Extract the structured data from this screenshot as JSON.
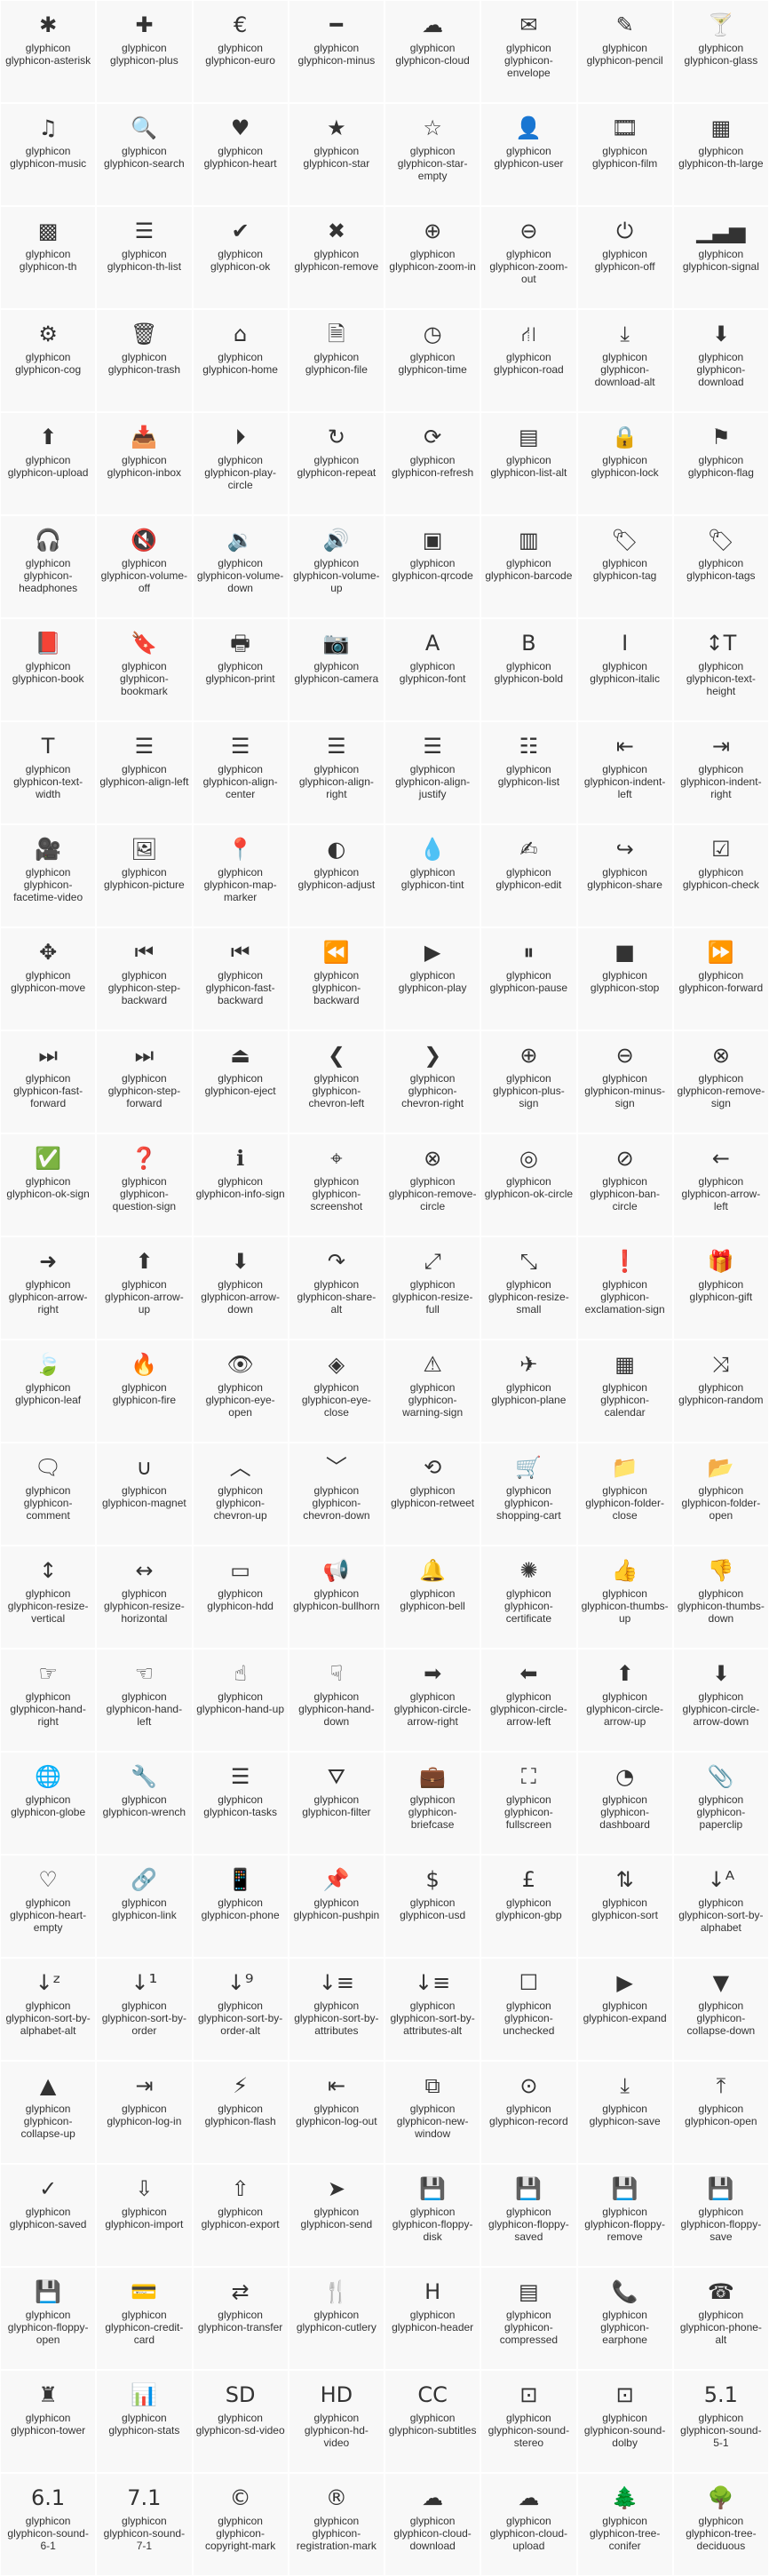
{
  "icons": [
    {
      "label": "glyphicon glyphicon-asterisk",
      "icon": "✱"
    },
    {
      "label": "glyphicon glyphicon-plus",
      "icon": "✚"
    },
    {
      "label": "glyphicon glyphicon-euro",
      "icon": "€"
    },
    {
      "label": "glyphicon glyphicon-minus",
      "icon": "━"
    },
    {
      "label": "glyphicon glyphicon-cloud",
      "icon": "☁"
    },
    {
      "label": "glyphicon glyphicon-envelope",
      "icon": "✉"
    },
    {
      "label": "glyphicon glyphicon-pencil",
      "icon": "✎"
    },
    {
      "label": "glyphicon glyphicon-glass",
      "icon": "🍸"
    },
    {
      "label": "glyphicon glyphicon-music",
      "icon": "♫"
    },
    {
      "label": "glyphicon glyphicon-search",
      "icon": "🔍"
    },
    {
      "label": "glyphicon glyphicon-heart",
      "icon": "♥"
    },
    {
      "label": "glyphicon glyphicon-star",
      "icon": "★"
    },
    {
      "label": "glyphicon glyphicon-star-empty",
      "icon": "☆"
    },
    {
      "label": "glyphicon glyphicon-user",
      "icon": "👤"
    },
    {
      "label": "glyphicon glyphicon-film",
      "icon": "🎞"
    },
    {
      "label": "glyphicon glyphicon-th-large",
      "icon": "▦"
    },
    {
      "label": "glyphicon glyphicon-th",
      "icon": "▩"
    },
    {
      "label": "glyphicon glyphicon-th-list",
      "icon": "☰"
    },
    {
      "label": "glyphicon glyphicon-ok",
      "icon": "✔"
    },
    {
      "label": "glyphicon glyphicon-remove",
      "icon": "✖"
    },
    {
      "label": "glyphicon glyphicon-zoom-in",
      "icon": "⊕"
    },
    {
      "label": "glyphicon glyphicon-zoom-out",
      "icon": "⊖"
    },
    {
      "label": "glyphicon glyphicon-off",
      "icon": "⏻"
    },
    {
      "label": "glyphicon glyphicon-signal",
      "icon": "▁▃▅"
    },
    {
      "label": "glyphicon glyphicon-cog",
      "icon": "⚙"
    },
    {
      "label": "glyphicon glyphicon-trash",
      "icon": "🗑"
    },
    {
      "label": "glyphicon glyphicon-home",
      "icon": "⌂"
    },
    {
      "label": "glyphicon glyphicon-file",
      "icon": "🗎"
    },
    {
      "label": "glyphicon glyphicon-time",
      "icon": "◷"
    },
    {
      "label": "glyphicon glyphicon-road",
      "icon": "⛙"
    },
    {
      "label": "glyphicon glyphicon-download-alt",
      "icon": "⤓"
    },
    {
      "label": "glyphicon glyphicon-download",
      "icon": "⬇"
    },
    {
      "label": "glyphicon glyphicon-upload",
      "icon": "⬆"
    },
    {
      "label": "glyphicon glyphicon-inbox",
      "icon": "📥"
    },
    {
      "label": "glyphicon glyphicon-play-circle",
      "icon": "⏵"
    },
    {
      "label": "glyphicon glyphicon-repeat",
      "icon": "↻"
    },
    {
      "label": "glyphicon glyphicon-refresh",
      "icon": "⟳"
    },
    {
      "label": "glyphicon glyphicon-list-alt",
      "icon": "▤"
    },
    {
      "label": "glyphicon glyphicon-lock",
      "icon": "🔒"
    },
    {
      "label": "glyphicon glyphicon-flag",
      "icon": "⚑"
    },
    {
      "label": "glyphicon glyphicon-headphones",
      "icon": "🎧"
    },
    {
      "label": "glyphicon glyphicon-volume-off",
      "icon": "🔇"
    },
    {
      "label": "glyphicon glyphicon-volume-down",
      "icon": "🔉"
    },
    {
      "label": "glyphicon glyphicon-volume-up",
      "icon": "🔊"
    },
    {
      "label": "glyphicon glyphicon-qrcode",
      "icon": "▣"
    },
    {
      "label": "glyphicon glyphicon-barcode",
      "icon": "▥"
    },
    {
      "label": "glyphicon glyphicon-tag",
      "icon": "🏷"
    },
    {
      "label": "glyphicon glyphicon-tags",
      "icon": "🏷"
    },
    {
      "label": "glyphicon glyphicon-book",
      "icon": "📕"
    },
    {
      "label": "glyphicon glyphicon-bookmark",
      "icon": "🔖"
    },
    {
      "label": "glyphicon glyphicon-print",
      "icon": "🖶"
    },
    {
      "label": "glyphicon glyphicon-camera",
      "icon": "📷"
    },
    {
      "label": "glyphicon glyphicon-font",
      "icon": "A"
    },
    {
      "label": "glyphicon glyphicon-bold",
      "icon": "B"
    },
    {
      "label": "glyphicon glyphicon-italic",
      "icon": "I"
    },
    {
      "label": "glyphicon glyphicon-text-height",
      "icon": "↕T"
    },
    {
      "label": "glyphicon glyphicon-text-width",
      "icon": "T"
    },
    {
      "label": "glyphicon glyphicon-align-left",
      "icon": "☰"
    },
    {
      "label": "glyphicon glyphicon-align-center",
      "icon": "☰"
    },
    {
      "label": "glyphicon glyphicon-align-right",
      "icon": "☰"
    },
    {
      "label": "glyphicon glyphicon-align-justify",
      "icon": "☰"
    },
    {
      "label": "glyphicon glyphicon-list",
      "icon": "☷"
    },
    {
      "label": "glyphicon glyphicon-indent-left",
      "icon": "⇤"
    },
    {
      "label": "glyphicon glyphicon-indent-right",
      "icon": "⇥"
    },
    {
      "label": "glyphicon glyphicon-facetime-video",
      "icon": "🎥"
    },
    {
      "label": "glyphicon glyphicon-picture",
      "icon": "🖼"
    },
    {
      "label": "glyphicon glyphicon-map-marker",
      "icon": "📍"
    },
    {
      "label": "glyphicon glyphicon-adjust",
      "icon": "◐"
    },
    {
      "label": "glyphicon glyphicon-tint",
      "icon": "💧"
    },
    {
      "label": "glyphicon glyphicon-edit",
      "icon": "✍"
    },
    {
      "label": "glyphicon glyphicon-share",
      "icon": "↪"
    },
    {
      "label": "glyphicon glyphicon-check",
      "icon": "☑"
    },
    {
      "label": "glyphicon glyphicon-move",
      "icon": "✥"
    },
    {
      "label": "glyphicon glyphicon-step-backward",
      "icon": "⏮"
    },
    {
      "label": "glyphicon glyphicon-fast-backward",
      "icon": "⏮"
    },
    {
      "label": "glyphicon glyphicon-backward",
      "icon": "⏪"
    },
    {
      "label": "glyphicon glyphicon-play",
      "icon": "▶"
    },
    {
      "label": "glyphicon glyphicon-pause",
      "icon": "⏸"
    },
    {
      "label": "glyphicon glyphicon-stop",
      "icon": "■"
    },
    {
      "label": "glyphicon glyphicon-forward",
      "icon": "⏩"
    },
    {
      "label": "glyphicon glyphicon-fast-forward",
      "icon": "⏭"
    },
    {
      "label": "glyphicon glyphicon-step-forward",
      "icon": "⏭"
    },
    {
      "label": "glyphicon glyphicon-eject",
      "icon": "⏏"
    },
    {
      "label": "glyphicon glyphicon-chevron-left",
      "icon": "❮"
    },
    {
      "label": "glyphicon glyphicon-chevron-right",
      "icon": "❯"
    },
    {
      "label": "glyphicon glyphicon-plus-sign",
      "icon": "⊕"
    },
    {
      "label": "glyphicon glyphicon-minus-sign",
      "icon": "⊖"
    },
    {
      "label": "glyphicon glyphicon-remove-sign",
      "icon": "⊗"
    },
    {
      "label": "glyphicon glyphicon-ok-sign",
      "icon": "✅"
    },
    {
      "label": "glyphicon glyphicon-question-sign",
      "icon": "❓"
    },
    {
      "label": "glyphicon glyphicon-info-sign",
      "icon": "ℹ"
    },
    {
      "label": "glyphicon glyphicon-screenshot",
      "icon": "⌖"
    },
    {
      "label": "glyphicon glyphicon-remove-circle",
      "icon": "⊗"
    },
    {
      "label": "glyphicon glyphicon-ok-circle",
      "icon": "◎"
    },
    {
      "label": "glyphicon glyphicon-ban-circle",
      "icon": "⊘"
    },
    {
      "label": "glyphicon glyphicon-arrow-left",
      "icon": "←"
    },
    {
      "label": "glyphicon glyphicon-arrow-right",
      "icon": "➜"
    },
    {
      "label": "glyphicon glyphicon-arrow-up",
      "icon": "⬆"
    },
    {
      "label": "glyphicon glyphicon-arrow-down",
      "icon": "⬇"
    },
    {
      "label": "glyphicon glyphicon-share-alt",
      "icon": "↷"
    },
    {
      "label": "glyphicon glyphicon-resize-full",
      "icon": "⤢"
    },
    {
      "label": "glyphicon glyphicon-resize-small",
      "icon": "⤡"
    },
    {
      "label": "glyphicon glyphicon-exclamation-sign",
      "icon": "❗"
    },
    {
      "label": "glyphicon glyphicon-gift",
      "icon": "🎁"
    },
    {
      "label": "glyphicon glyphicon-leaf",
      "icon": "🍃"
    },
    {
      "label": "glyphicon glyphicon-fire",
      "icon": "🔥"
    },
    {
      "label": "glyphicon glyphicon-eye-open",
      "icon": "👁"
    },
    {
      "label": "glyphicon glyphicon-eye-close",
      "icon": "◈"
    },
    {
      "label": "glyphicon glyphicon-warning-sign",
      "icon": "⚠"
    },
    {
      "label": "glyphicon glyphicon-plane",
      "icon": "✈"
    },
    {
      "label": "glyphicon glyphicon-calendar",
      "icon": "▦"
    },
    {
      "label": "glyphicon glyphicon-random",
      "icon": "⤨"
    },
    {
      "label": "glyphicon glyphicon-comment",
      "icon": "🗨"
    },
    {
      "label": "glyphicon glyphicon-magnet",
      "icon": "∪"
    },
    {
      "label": "glyphicon glyphicon-chevron-up",
      "icon": "︿"
    },
    {
      "label": "glyphicon glyphicon-chevron-down",
      "icon": "﹀"
    },
    {
      "label": "glyphicon glyphicon-retweet",
      "icon": "⟲"
    },
    {
      "label": "glyphicon glyphicon-shopping-cart",
      "icon": "🛒"
    },
    {
      "label": "glyphicon glyphicon-folder-close",
      "icon": "📁"
    },
    {
      "label": "glyphicon glyphicon-folder-open",
      "icon": "📂"
    },
    {
      "label": "glyphicon glyphicon-resize-vertical",
      "icon": "↕"
    },
    {
      "label": "glyphicon glyphicon-resize-horizontal",
      "icon": "↔"
    },
    {
      "label": "glyphicon glyphicon-hdd",
      "icon": "▭"
    },
    {
      "label": "glyphicon glyphicon-bullhorn",
      "icon": "📢"
    },
    {
      "label": "glyphicon glyphicon-bell",
      "icon": "🔔"
    },
    {
      "label": "glyphicon glyphicon-certificate",
      "icon": "✺"
    },
    {
      "label": "glyphicon glyphicon-thumbs-up",
      "icon": "👍"
    },
    {
      "label": "glyphicon glyphicon-thumbs-down",
      "icon": "👎"
    },
    {
      "label": "glyphicon glyphicon-hand-right",
      "icon": "☞"
    },
    {
      "label": "glyphicon glyphicon-hand-left",
      "icon": "☜"
    },
    {
      "label": "glyphicon glyphicon-hand-up",
      "icon": "☝"
    },
    {
      "label": "glyphicon glyphicon-hand-down",
      "icon": "☟"
    },
    {
      "label": "glyphicon glyphicon-circle-arrow-right",
      "icon": "➡"
    },
    {
      "label": "glyphicon glyphicon-circle-arrow-left",
      "icon": "⬅"
    },
    {
      "label": "glyphicon glyphicon-circle-arrow-up",
      "icon": "⬆"
    },
    {
      "label": "glyphicon glyphicon-circle-arrow-down",
      "icon": "⬇"
    },
    {
      "label": "glyphicon glyphicon-globe",
      "icon": "🌐"
    },
    {
      "label": "glyphicon glyphicon-wrench",
      "icon": "🔧"
    },
    {
      "label": "glyphicon glyphicon-tasks",
      "icon": "☰"
    },
    {
      "label": "glyphicon glyphicon-filter",
      "icon": "⛛"
    },
    {
      "label": "glyphicon glyphicon-briefcase",
      "icon": "💼"
    },
    {
      "label": "glyphicon glyphicon-fullscreen",
      "icon": "⛶"
    },
    {
      "label": "glyphicon glyphicon-dashboard",
      "icon": "◔"
    },
    {
      "label": "glyphicon glyphicon-paperclip",
      "icon": "📎"
    },
    {
      "label": "glyphicon glyphicon-heart-empty",
      "icon": "♡"
    },
    {
      "label": "glyphicon glyphicon-link",
      "icon": "🔗"
    },
    {
      "label": "glyphicon glyphicon-phone",
      "icon": "📱"
    },
    {
      "label": "glyphicon glyphicon-pushpin",
      "icon": "📌"
    },
    {
      "label": "glyphicon glyphicon-usd",
      "icon": "$"
    },
    {
      "label": "glyphicon glyphicon-gbp",
      "icon": "£"
    },
    {
      "label": "glyphicon glyphicon-sort",
      "icon": "⇅"
    },
    {
      "label": "glyphicon glyphicon-sort-by-alphabet",
      "icon": "↓ᴬ"
    },
    {
      "label": "glyphicon glyphicon-sort-by-alphabet-alt",
      "icon": "↓ᶻ"
    },
    {
      "label": "glyphicon glyphicon-sort-by-order",
      "icon": "↓¹"
    },
    {
      "label": "glyphicon glyphicon-sort-by-order-alt",
      "icon": "↓⁹"
    },
    {
      "label": "glyphicon glyphicon-sort-by-attributes",
      "icon": "↓≡"
    },
    {
      "label": "glyphicon glyphicon-sort-by-attributes-alt",
      "icon": "↓≡"
    },
    {
      "label": "glyphicon glyphicon-unchecked",
      "icon": "☐"
    },
    {
      "label": "glyphicon glyphicon-expand",
      "icon": "▶"
    },
    {
      "label": "glyphicon glyphicon-collapse-down",
      "icon": "▼"
    },
    {
      "label": "glyphicon glyphicon-collapse-up",
      "icon": "▲"
    },
    {
      "label": "glyphicon glyphicon-log-in",
      "icon": "⇥"
    },
    {
      "label": "glyphicon glyphicon-flash",
      "icon": "⚡"
    },
    {
      "label": "glyphicon glyphicon-log-out",
      "icon": "⇤"
    },
    {
      "label": "glyphicon glyphicon-new-window",
      "icon": "⧉"
    },
    {
      "label": "glyphicon glyphicon-record",
      "icon": "⊙"
    },
    {
      "label": "glyphicon glyphicon-save",
      "icon": "⤓"
    },
    {
      "label": "glyphicon glyphicon-open",
      "icon": "⤒"
    },
    {
      "label": "glyphicon glyphicon-saved",
      "icon": "✓"
    },
    {
      "label": "glyphicon glyphicon-import",
      "icon": "⇩"
    },
    {
      "label": "glyphicon glyphicon-export",
      "icon": "⇧"
    },
    {
      "label": "glyphicon glyphicon-send",
      "icon": "➤"
    },
    {
      "label": "glyphicon glyphicon-floppy-disk",
      "icon": "💾"
    },
    {
      "label": "glyphicon glyphicon-floppy-saved",
      "icon": "💾"
    },
    {
      "label": "glyphicon glyphicon-floppy-remove",
      "icon": "💾"
    },
    {
      "label": "glyphicon glyphicon-floppy-save",
      "icon": "💾"
    },
    {
      "label": "glyphicon glyphicon-floppy-open",
      "icon": "💾"
    },
    {
      "label": "glyphicon glyphicon-credit-card",
      "icon": "💳"
    },
    {
      "label": "glyphicon glyphicon-transfer",
      "icon": "⇄"
    },
    {
      "label": "glyphicon glyphicon-cutlery",
      "icon": "🍴"
    },
    {
      "label": "glyphicon glyphicon-header",
      "icon": "H"
    },
    {
      "label": "glyphicon glyphicon-compressed",
      "icon": "▤"
    },
    {
      "label": "glyphicon glyphicon-earphone",
      "icon": "📞"
    },
    {
      "label": "glyphicon glyphicon-phone-alt",
      "icon": "☎"
    },
    {
      "label": "glyphicon glyphicon-tower",
      "icon": "♜"
    },
    {
      "label": "glyphicon glyphicon-stats",
      "icon": "📊"
    },
    {
      "label": "glyphicon glyphicon-sd-video",
      "icon": "SD"
    },
    {
      "label": "glyphicon glyphicon-hd-video",
      "icon": "HD"
    },
    {
      "label": "glyphicon glyphicon-subtitles",
      "icon": "CC"
    },
    {
      "label": "glyphicon glyphicon-sound-stereo",
      "icon": "⊡"
    },
    {
      "label": "glyphicon glyphicon-sound-dolby",
      "icon": "⊡"
    },
    {
      "label": "glyphicon glyphicon-sound-5-1",
      "icon": "5.1"
    },
    {
      "label": "glyphicon glyphicon-sound-6-1",
      "icon": "6.1"
    },
    {
      "label": "glyphicon glyphicon-sound-7-1",
      "icon": "7.1"
    },
    {
      "label": "glyphicon glyphicon-copyright-mark",
      "icon": "©"
    },
    {
      "label": "glyphicon glyphicon-registration-mark",
      "icon": "®"
    },
    {
      "label": "glyphicon glyphicon-cloud-download",
      "icon": "☁"
    },
    {
      "label": "glyphicon glyphicon-cloud-upload",
      "icon": "☁"
    },
    {
      "label": "glyphicon glyphicon-tree-conifer",
      "icon": "🌲"
    },
    {
      "label": "glyphicon glyphicon-tree-deciduous",
      "icon": "🌳"
    }
  ]
}
